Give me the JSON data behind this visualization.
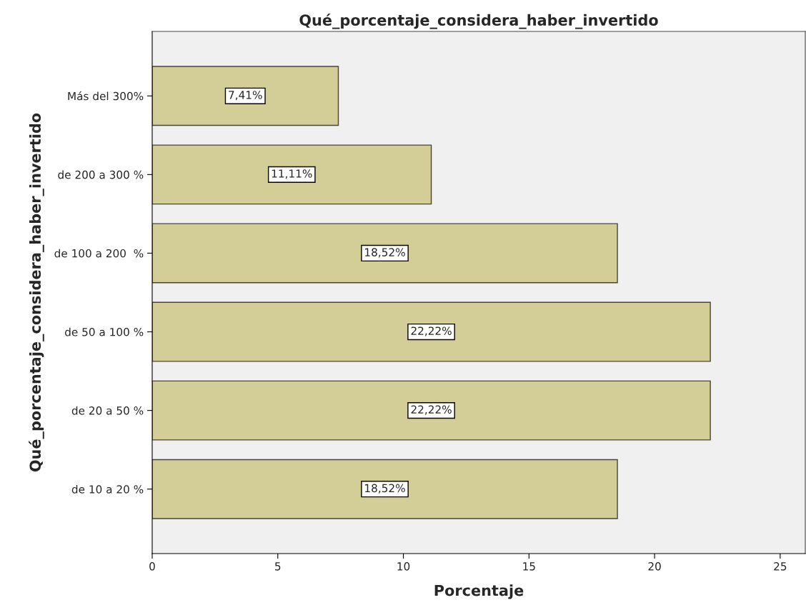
{
  "chart_data": {
    "type": "bar",
    "orientation": "horizontal",
    "title": "Qué_porcentaje_considera_haber_invertido",
    "xlabel": "Porcentaje",
    "ylabel": "Qué_porcentaje_considera_haber_invertido",
    "categories": [
      "Más del 300%",
      "de 200 a 300 %",
      "de 100 a 200  %",
      "de 50 a 100 %",
      "de 20 a 50 %",
      "de 10 a 20 %"
    ],
    "values": [
      7.41,
      11.11,
      18.52,
      22.22,
      22.22,
      18.52
    ],
    "value_labels": [
      "7,41%",
      "11,11%",
      "18,52%",
      "22,22%",
      "22,22%",
      "18,52%"
    ],
    "color": "#d3ce97",
    "xlim": [
      0,
      26
    ],
    "xticks": [
      0,
      5,
      10,
      15,
      20,
      25
    ],
    "grid": false,
    "legend": false
  }
}
